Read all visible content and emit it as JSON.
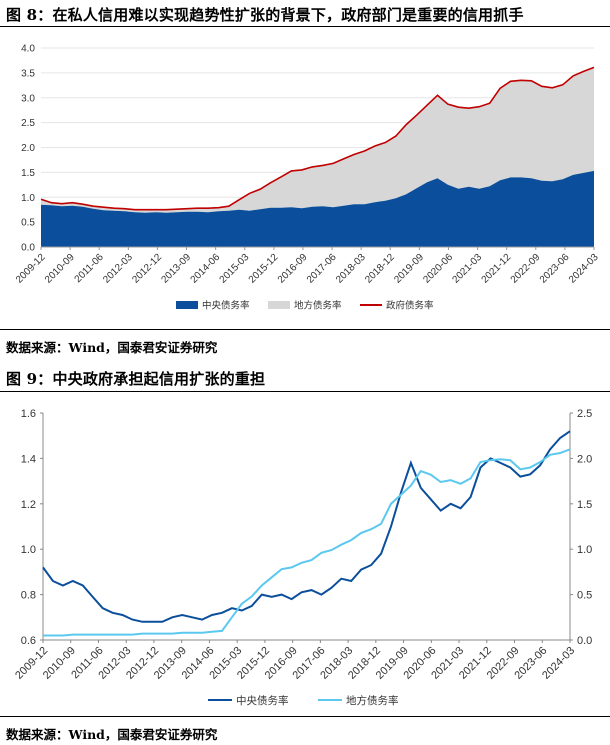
{
  "figure1": {
    "title": "图 8：在私人信用难以实现趋势性扩张的背景下，政府部门是重要的信用抓手",
    "source": "数据来源：Wind，国泰君安证券研究"
  },
  "figure2": {
    "title": "图 9：中央政府承担起信用扩张的重担",
    "source": "数据来源：Wind，国泰君安证券研究"
  },
  "colors": {
    "central": "#0b4f9c",
    "local": "#d7d7d7",
    "gov": "#c00000",
    "local_line": "#5bc8f0"
  },
  "chart_data": [
    {
      "type": "area",
      "title": "",
      "ylim": [
        0,
        4.0
      ],
      "yticks": [
        "0.0",
        "0.5",
        "1.0",
        "1.5",
        "2.0",
        "2.5",
        "3.0",
        "3.5",
        "4.0"
      ],
      "xticks": [
        "2009-12",
        "2010-09",
        "2011-06",
        "2012-03",
        "2012-12",
        "2013-09",
        "2014-06",
        "2015-03",
        "2015-12",
        "2016-09",
        "2017-06",
        "2018-03",
        "2018-12",
        "2019-09",
        "2020-06",
        "2021-03",
        "2021-12",
        "2022-09",
        "2023-06",
        "2024-03"
      ],
      "legend": [
        "中央债务率",
        "地方债务率",
        "政府债务率"
      ],
      "series": [
        {
          "name": "中央债务率",
          "values": [
            0.85,
            0.84,
            0.82,
            0.83,
            0.81,
            0.77,
            0.74,
            0.73,
            0.72,
            0.7,
            0.69,
            0.7,
            0.69,
            0.7,
            0.71,
            0.71,
            0.7,
            0.72,
            0.73,
            0.75,
            0.73,
            0.76,
            0.79,
            0.79,
            0.8,
            0.78,
            0.81,
            0.82,
            0.8,
            0.83,
            0.86,
            0.86,
            0.9,
            0.93,
            0.98,
            1.06,
            1.18,
            1.3,
            1.38,
            1.25,
            1.17,
            1.21,
            1.17,
            1.22,
            1.34,
            1.4,
            1.4,
            1.38,
            1.33,
            1.32,
            1.36,
            1.45,
            1.49,
            1.53
          ]
        },
        {
          "name": "地方债务率",
          "values": [
            0.08,
            0.05,
            0.05,
            0.06,
            0.05,
            0.05,
            0.06,
            0.05,
            0.05,
            0.05,
            0.06,
            0.05,
            0.06,
            0.06,
            0.06,
            0.07,
            0.08,
            0.07,
            0.09,
            0.2,
            0.35,
            0.4,
            0.5,
            0.62,
            0.73,
            0.77,
            0.8,
            0.82,
            0.88,
            0.94,
            1.0,
            1.07,
            1.13,
            1.17,
            1.25,
            1.4,
            1.47,
            1.55,
            1.67,
            1.62,
            1.64,
            1.58,
            1.65,
            1.67,
            1.85,
            1.93,
            1.95,
            1.96,
            1.9,
            1.88,
            1.9,
            1.99,
            2.04,
            2.08
          ]
        },
        {
          "name": "政府债务率",
          "values": [
            0.96,
            0.89,
            0.87,
            0.89,
            0.86,
            0.82,
            0.8,
            0.78,
            0.77,
            0.75,
            0.75,
            0.75,
            0.75,
            0.76,
            0.77,
            0.78,
            0.78,
            0.79,
            0.82,
            0.95,
            1.08,
            1.16,
            1.29,
            1.41,
            1.53,
            1.55,
            1.61,
            1.64,
            1.68,
            1.77,
            1.86,
            1.93,
            2.03,
            2.1,
            2.23,
            2.46,
            2.65,
            2.85,
            3.05,
            2.87,
            2.81,
            2.79,
            2.82,
            2.89,
            3.19,
            3.33,
            3.35,
            3.34,
            3.23,
            3.2,
            3.26,
            3.44,
            3.53,
            3.61
          ]
        }
      ]
    },
    {
      "type": "line",
      "title": "",
      "ylim_left": [
        0.6,
        1.6
      ],
      "ylim_right": [
        0.0,
        2.5
      ],
      "yticks_left": [
        "0.6",
        "0.8",
        "1.0",
        "1.2",
        "1.4",
        "1.6"
      ],
      "yticks_right": [
        "0.0",
        "0.5",
        "1.0",
        "1.5",
        "2.0",
        "2.5"
      ],
      "xticks": [
        "2009-12",
        "2010-09",
        "2011-06",
        "2012-03",
        "2012-12",
        "2013-09",
        "2014-06",
        "2015-03",
        "2015-12",
        "2016-09",
        "2017-06",
        "2018-03",
        "2018-12",
        "2019-09",
        "2020-06",
        "2021-03",
        "2021-12",
        "2022-09",
        "2023-06",
        "2024-03"
      ],
      "legend": [
        "中央债务率",
        "地方债务率"
      ],
      "series": [
        {
          "name": "中央债务率",
          "axis": "left",
          "values": [
            0.92,
            0.86,
            0.84,
            0.86,
            0.84,
            0.79,
            0.74,
            0.72,
            0.71,
            0.69,
            0.68,
            0.68,
            0.68,
            0.7,
            0.71,
            0.7,
            0.69,
            0.71,
            0.72,
            0.74,
            0.73,
            0.75,
            0.8,
            0.79,
            0.8,
            0.78,
            0.81,
            0.82,
            0.8,
            0.83,
            0.87,
            0.86,
            0.91,
            0.93,
            0.98,
            1.1,
            1.25,
            1.38,
            1.27,
            1.22,
            1.17,
            1.2,
            1.18,
            1.23,
            1.36,
            1.4,
            1.38,
            1.36,
            1.32,
            1.33,
            1.37,
            1.44,
            1.49,
            1.52
          ]
        },
        {
          "name": "地方债务率",
          "axis": "right",
          "values": [
            0.05,
            0.05,
            0.05,
            0.06,
            0.06,
            0.06,
            0.06,
            0.06,
            0.06,
            0.06,
            0.07,
            0.07,
            0.07,
            0.07,
            0.08,
            0.08,
            0.08,
            0.09,
            0.1,
            0.25,
            0.4,
            0.48,
            0.6,
            0.69,
            0.78,
            0.8,
            0.85,
            0.88,
            0.96,
            0.99,
            1.05,
            1.1,
            1.18,
            1.22,
            1.28,
            1.5,
            1.6,
            1.7,
            1.86,
            1.82,
            1.74,
            1.76,
            1.72,
            1.78,
            1.96,
            1.98,
            1.99,
            1.98,
            1.88,
            1.9,
            1.96,
            2.04,
            2.06,
            2.1
          ]
        }
      ]
    }
  ]
}
